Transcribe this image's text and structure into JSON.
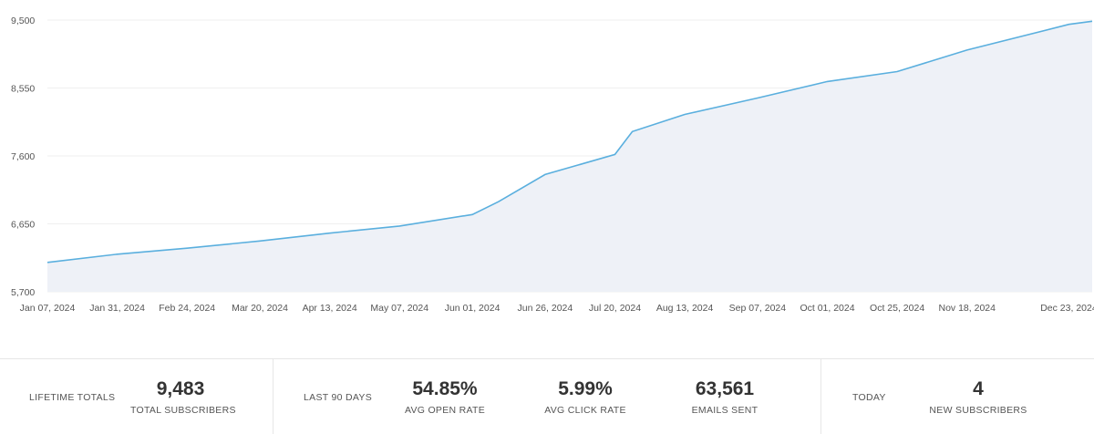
{
  "chart_data": {
    "type": "area",
    "title": "",
    "xlabel": "",
    "ylabel": "",
    "line_color": "#5aafde",
    "fill_color": "#eef1f7",
    "grid": true,
    "ylim": [
      5700,
      9500
    ],
    "yticks": [
      {
        "label": "9,500",
        "value": 9500
      },
      {
        "label": "8,550",
        "value": 8550
      },
      {
        "label": "7,600",
        "value": 7600
      },
      {
        "label": "6,650",
        "value": 6650
      },
      {
        "label": "5,700",
        "value": 5700
      }
    ],
    "xticks": [
      "Jan 07, 2024",
      "Jan 31, 2024",
      "Feb 24, 2024",
      "Mar 20, 2024",
      "Apr 13, 2024",
      "May 07, 2024",
      "Jun 01, 2024",
      "Jun 26, 2024",
      "Jul 20, 2024",
      "Aug 13, 2024",
      "Sep 07, 2024",
      "Oct 01, 2024",
      "Oct 25, 2024",
      "Nov 18, 2024",
      "Dec 23, 2024"
    ],
    "series": [
      {
        "values": [
          [
            "Jan 07, 2024",
            6110
          ],
          [
            "Jan 31, 2024",
            6225
          ],
          [
            "Feb 24, 2024",
            6310
          ],
          [
            "Mar 20, 2024",
            6410
          ],
          [
            "Apr 13, 2024",
            6520
          ],
          [
            "May 07, 2024",
            6620
          ],
          [
            "Jun 01, 2024",
            6780
          ],
          [
            "Jun 10, 2024",
            6960
          ],
          [
            "Jun 26, 2024",
            7340
          ],
          [
            "Jul 20, 2024",
            7620
          ],
          [
            "Jul 26, 2024",
            7940
          ],
          [
            "Aug 13, 2024",
            8180
          ],
          [
            "Sep 07, 2024",
            8410
          ],
          [
            "Oct 01, 2024",
            8640
          ],
          [
            "Oct 25, 2024",
            8780
          ],
          [
            "Nov 18, 2024",
            9080
          ],
          [
            "Dec 23, 2024",
            9440
          ],
          [
            "Dec 31, 2024",
            9483
          ]
        ]
      }
    ]
  },
  "stats": {
    "lifetime": {
      "section_label": "LIFETIME TOTALS",
      "total_subscribers": {
        "value": "9,483",
        "label": "TOTAL SUBSCRIBERS"
      }
    },
    "last90": {
      "section_label": "LAST 90 DAYS",
      "open_rate": {
        "value": "54.85%",
        "label": "AVG OPEN RATE"
      },
      "click_rate": {
        "value": "5.99%",
        "label": "AVG CLICK RATE"
      },
      "emails_sent": {
        "value": "63,561",
        "label": "EMAILS SENT"
      }
    },
    "today": {
      "section_label": "TODAY",
      "new_subscribers": {
        "value": "4",
        "label": "NEW SUBSCRIBERS"
      }
    }
  }
}
